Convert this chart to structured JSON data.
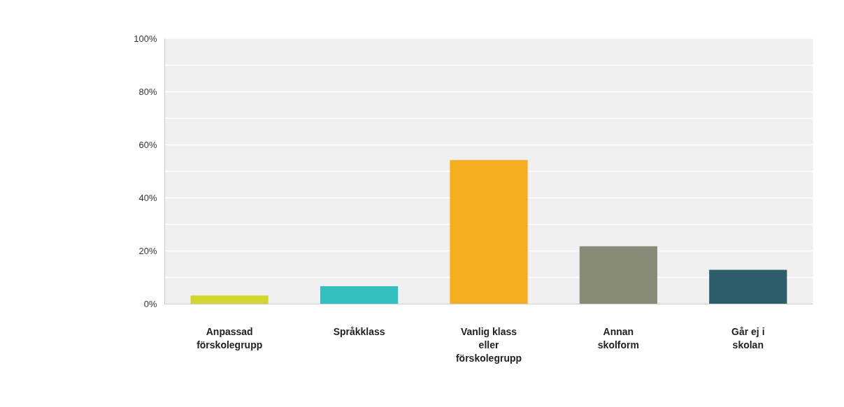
{
  "chart_data": {
    "type": "bar",
    "categories": [
      "Anpassad förskolegrupp",
      "Språkklass",
      "Vanlig klass eller förskolegrupp",
      "Annan skolform",
      "Går ej i skolan"
    ],
    "values": [
      3.2,
      6.7,
      54.3,
      21.8,
      12.9
    ],
    "colors": [
      "#d4d62e",
      "#33bfbf",
      "#f5ae20",
      "#8a8a78",
      "#2e5e6b"
    ],
    "ylim": [
      0,
      100
    ],
    "yticks": [
      {
        "value": 0,
        "label": "0%"
      },
      {
        "value": 10,
        "label": null
      },
      {
        "value": 20,
        "label": "20%"
      },
      {
        "value": 30,
        "label": null
      },
      {
        "value": 40,
        "label": "40%"
      },
      {
        "value": 50,
        "label": null
      },
      {
        "value": 60,
        "label": "60%"
      },
      {
        "value": 70,
        "label": null
      },
      {
        "value": 80,
        "label": "80%"
      },
      {
        "value": 90,
        "label": null
      },
      {
        "value": 100,
        "label": "100%"
      }
    ],
    "grid": "y"
  }
}
